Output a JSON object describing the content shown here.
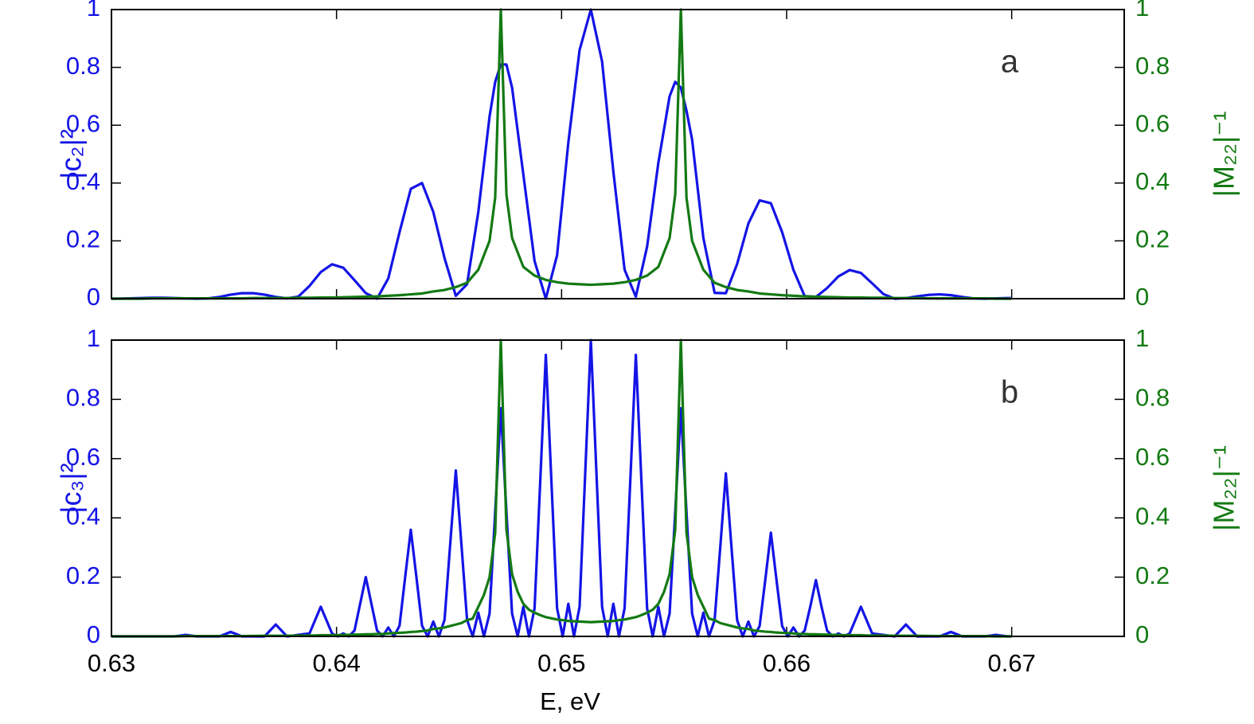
{
  "chart_data": [
    {
      "type": "line",
      "annotation": "a",
      "ylabel": "|c₂|²",
      "y2label": "|M₂₂|⁻¹",
      "xlim": [
        0.63,
        0.675
      ],
      "xticks": [
        0.63,
        0.64,
        0.65,
        0.66,
        0.67
      ],
      "ylim": [
        0,
        1
      ],
      "yticks": [
        0,
        0.2,
        0.4,
        0.6,
        0.8,
        1
      ],
      "y2lim": [
        0,
        1
      ],
      "y2ticks": [
        0,
        0.2,
        0.4,
        0.6,
        0.8,
        1
      ],
      "x": [
        0.63,
        0.6303,
        0.6308,
        0.6313,
        0.6318,
        0.6323,
        0.6328,
        0.6333,
        0.6338,
        0.6343,
        0.6348,
        0.6353,
        0.6358,
        0.6363,
        0.6368,
        0.6373,
        0.6378,
        0.6383,
        0.6388,
        0.6393,
        0.6398,
        0.6403,
        0.6408,
        0.6413,
        0.6418,
        0.6423,
        0.6428,
        0.6433,
        0.6438,
        0.6443,
        0.6448,
        0.6453,
        0.6458,
        0.6463,
        0.6468,
        0.64705,
        0.6473,
        0.64755,
        0.6478,
        0.6483,
        0.6488,
        0.6493,
        0.6498,
        0.6503,
        0.6508,
        0.6513,
        0.6518,
        0.6523,
        0.6528,
        0.6533,
        0.6538,
        0.6543,
        0.6548,
        0.65505,
        0.6553,
        0.65555,
        0.6558,
        0.6563,
        0.6568,
        0.6573,
        0.6578,
        0.6583,
        0.6588,
        0.6593,
        0.6598,
        0.6603,
        0.6608,
        0.6613,
        0.6618,
        0.6623,
        0.6628,
        0.6633,
        0.6638,
        0.6643,
        0.6648,
        0.6653,
        0.6658,
        0.6663,
        0.6668,
        0.6673,
        0.6678,
        0.6683,
        0.6688,
        0.6693,
        0.6698,
        0.67
      ],
      "series": [
        {
          "name": "|c₂|²",
          "color": "#1414e6",
          "axis": "y",
          "values": [
            0,
            0,
            0.001,
            0.002,
            0.003,
            0.003,
            0.002,
            0.001,
            0,
            0.001,
            0.006,
            0.014,
            0.019,
            0.019,
            0.014,
            0.006,
            0.001,
            0.007,
            0.044,
            0.092,
            0.119,
            0.107,
            0.064,
            0.019,
            0,
            0.07,
            0.23,
            0.38,
            0.4,
            0.3,
            0.14,
            0.01,
            0.05,
            0.3,
            0.63,
            0.75,
            0.81,
            0.81,
            0.73,
            0.43,
            0.13,
            0,
            0.15,
            0.54,
            0.86,
            1,
            0.82,
            0.44,
            0.1,
            0.007,
            0.18,
            0.47,
            0.7,
            0.75,
            0.73,
            0.65,
            0.55,
            0.21,
            0.02,
            0.019,
            0.12,
            0.26,
            0.34,
            0.33,
            0.23,
            0.1,
            0.009,
            0.006,
            0.037,
            0.077,
            0.099,
            0.089,
            0.053,
            0.016,
            0,
            0.002,
            0.008,
            0.013,
            0.015,
            0.012,
            0.006,
            0.001,
            0,
            0.001,
            0.002,
            0.002
          ]
        },
        {
          "name": "|M₂₂|⁻¹",
          "color": "#137a13",
          "axis": "y2",
          "values": [
            0,
            0,
            0,
            0,
            0.001,
            0.001,
            0.001,
            0.001,
            0.001,
            0.001,
            0.001,
            0.001,
            0.001,
            0.002,
            0.002,
            0.002,
            0.002,
            0.003,
            0.003,
            0.004,
            0.004,
            0.005,
            0.006,
            0.007,
            0.008,
            0.01,
            0.012,
            0.015,
            0.018,
            0.025,
            0.03,
            0.04,
            0.055,
            0.1,
            0.2,
            0.35,
            1,
            0.36,
            0.21,
            0.11,
            0.08,
            0.065,
            0.057,
            0.052,
            0.05,
            0.048,
            0.05,
            0.052,
            0.057,
            0.065,
            0.08,
            0.11,
            0.21,
            0.36,
            1,
            0.35,
            0.2,
            0.1,
            0.055,
            0.04,
            0.03,
            0.025,
            0.018,
            0.015,
            0.012,
            0.01,
            0.008,
            0.007,
            0.006,
            0.005,
            0.004,
            0.004,
            0.003,
            0.003,
            0.002,
            0.002,
            0.002,
            0.001,
            0.001,
            0.001,
            0.001,
            0.001,
            0.001,
            0,
            0,
            0
          ]
        }
      ]
    },
    {
      "type": "line",
      "annotation": "b",
      "ylabel": "|c₃|²",
      "y2label": "|M₂₂|⁻¹",
      "xlabel": "E, eV",
      "xlim": [
        0.63,
        0.675
      ],
      "xticks": [
        0.63,
        0.64,
        0.65,
        0.66,
        0.67
      ],
      "ylim": [
        0,
        1
      ],
      "yticks": [
        0,
        0.2,
        0.4,
        0.6,
        0.8,
        1
      ],
      "y2lim": [
        0,
        1
      ],
      "y2ticks": [
        0,
        0.2,
        0.4,
        0.6,
        0.8,
        1
      ],
      "x": [
        0.63,
        0.6328,
        0.6333,
        0.6338,
        0.6348,
        0.6353,
        0.6358,
        0.6368,
        0.6373,
        0.6378,
        0.6388,
        0.63905,
        0.6393,
        0.63955,
        0.6398,
        0.64005,
        0.6403,
        0.64055,
        0.6408,
        0.64105,
        0.6413,
        0.64155,
        0.6418,
        0.64205,
        0.6423,
        0.64255,
        0.6428,
        0.64305,
        0.6433,
        0.64355,
        0.6438,
        0.64405,
        0.6443,
        0.64455,
        0.6448,
        0.64505,
        0.6453,
        0.64555,
        0.6458,
        0.64605,
        0.6463,
        0.64655,
        0.6468,
        0.64705,
        0.6473,
        0.64755,
        0.6478,
        0.64805,
        0.6483,
        0.64855,
        0.6488,
        0.64905,
        0.6493,
        0.64955,
        0.6498,
        0.65005,
        0.6503,
        0.65055,
        0.6508,
        0.65105,
        0.6513,
        0.65155,
        0.6518,
        0.65205,
        0.6523,
        0.65255,
        0.6528,
        0.65305,
        0.6533,
        0.65355,
        0.6538,
        0.65405,
        0.6543,
        0.65455,
        0.6548,
        0.65505,
        0.6553,
        0.65555,
        0.6558,
        0.65605,
        0.6563,
        0.65655,
        0.6568,
        0.65705,
        0.6573,
        0.65755,
        0.6578,
        0.65805,
        0.6583,
        0.65855,
        0.6588,
        0.65905,
        0.6593,
        0.65955,
        0.6598,
        0.66005,
        0.6603,
        0.66055,
        0.6608,
        0.66105,
        0.6613,
        0.66155,
        0.6618,
        0.66205,
        0.6623,
        0.66255,
        0.6628,
        0.66305,
        0.6633,
        0.66355,
        0.6638,
        0.6648,
        0.6653,
        0.6658,
        0.6668,
        0.6673,
        0.6678,
        0.6688,
        0.6693,
        0.6698,
        0.67
      ],
      "series": [
        {
          "name": "|c₃|²",
          "color": "#1414e6",
          "axis": "y",
          "values": [
            0,
            0,
            0.005,
            0,
            0,
            0.015,
            0,
            0,
            0.04,
            0,
            0.01,
            0.055,
            0.1,
            0.055,
            0.01,
            0,
            0.01,
            0,
            0.02,
            0.11,
            0.2,
            0.11,
            0.02,
            0,
            0.03,
            0,
            0.036,
            0.2,
            0.36,
            0.2,
            0.036,
            0,
            0.05,
            0,
            0.056,
            0.31,
            0.56,
            0.31,
            0.056,
            0,
            0.08,
            0,
            0.077,
            0.42,
            0.77,
            0.42,
            0.077,
            0,
            0.1,
            0,
            0.095,
            0.52,
            0.95,
            0.52,
            0.095,
            0,
            0.11,
            0,
            0.1,
            0.55,
            1,
            0.55,
            0.1,
            0,
            0.11,
            0,
            0.095,
            0.52,
            0.95,
            0.52,
            0.095,
            0,
            0.1,
            0,
            0.077,
            0.42,
            0.77,
            0.42,
            0.077,
            0,
            0.08,
            0,
            0.055,
            0.3,
            0.55,
            0.3,
            0.055,
            0,
            0.05,
            0,
            0.035,
            0.19,
            0.35,
            0.19,
            0.035,
            0,
            0.03,
            0,
            0.019,
            0.1,
            0.19,
            0.1,
            0.019,
            0,
            0.01,
            0,
            0.01,
            0.055,
            0.1,
            0.055,
            0.01,
            0,
            0.04,
            0,
            0,
            0.015,
            0,
            0,
            0.005,
            0,
            0
          ]
        },
        {
          "name": "|M₂₂|⁻¹",
          "color": "#137a13",
          "axis": "y2",
          "values": [
            0,
            0,
            0.001,
            0.001,
            0.001,
            0.001,
            0.001,
            0.002,
            0.002,
            0.002,
            0.003,
            0.003,
            0.004,
            0.004,
            0.004,
            0.004,
            0.005,
            0.005,
            0.006,
            0.006,
            0.007,
            0.007,
            0.008,
            0.008,
            0.01,
            0.011,
            0.012,
            0.013,
            0.015,
            0.016,
            0.018,
            0.02,
            0.025,
            0.027,
            0.03,
            0.035,
            0.04,
            0.045,
            0.055,
            0.06,
            0.1,
            0.14,
            0.2,
            0.35,
            1,
            0.36,
            0.21,
            0.15,
            0.11,
            0.09,
            0.08,
            0.072,
            0.065,
            0.061,
            0.057,
            0.055,
            0.052,
            0.051,
            0.05,
            0.049,
            0.048,
            0.049,
            0.05,
            0.051,
            0.052,
            0.055,
            0.057,
            0.061,
            0.065,
            0.072,
            0.08,
            0.09,
            0.11,
            0.15,
            0.21,
            0.36,
            1,
            0.35,
            0.2,
            0.14,
            0.1,
            0.06,
            0.055,
            0.045,
            0.04,
            0.035,
            0.03,
            0.027,
            0.025,
            0.02,
            0.018,
            0.016,
            0.015,
            0.013,
            0.012,
            0.011,
            0.01,
            0.008,
            0.008,
            0.007,
            0.007,
            0.006,
            0.006,
            0.005,
            0.005,
            0.004,
            0.004,
            0.004,
            0.004,
            0.003,
            0.003,
            0.002,
            0.002,
            0.002,
            0.001,
            0.001,
            0.001,
            0.001,
            0,
            0,
            0
          ]
        }
      ]
    }
  ]
}
